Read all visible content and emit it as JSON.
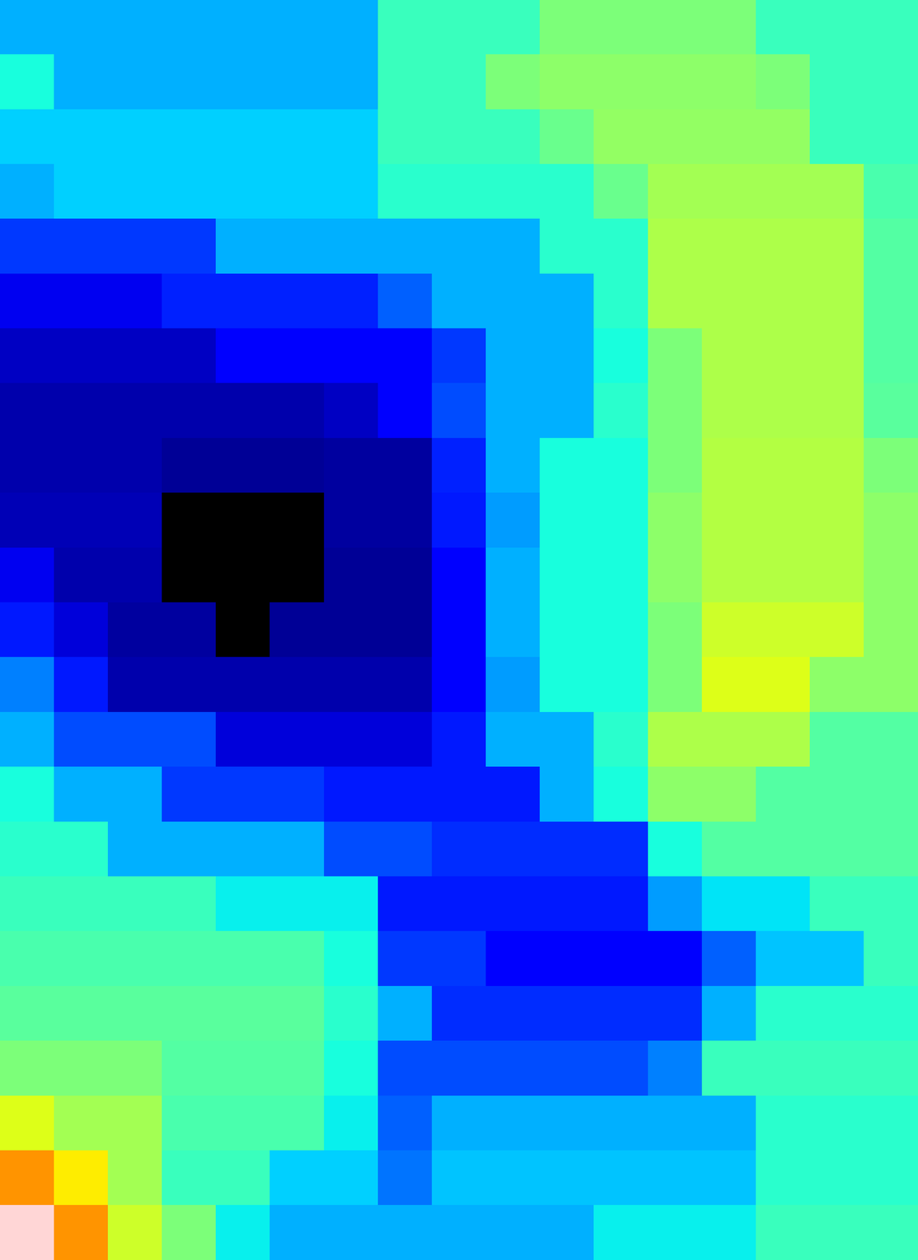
{
  "chart_data": {
    "type": "heatmap",
    "tick_labels": false,
    "vmin": 0,
    "vmax": 1,
    "cells": [
      [
        0.3,
        0.3,
        0.3,
        0.3,
        0.3,
        0.3,
        0.3,
        0.42,
        0.42,
        0.42,
        0.5,
        0.5,
        0.5,
        0.5,
        0.42,
        0.42,
        0.42
      ],
      [
        0.38,
        0.3,
        0.3,
        0.3,
        0.3,
        0.3,
        0.3,
        0.42,
        0.42,
        0.5,
        0.52,
        0.52,
        0.52,
        0.52,
        0.5,
        0.42,
        0.42
      ],
      [
        0.33,
        0.33,
        0.33,
        0.33,
        0.33,
        0.33,
        0.33,
        0.42,
        0.42,
        0.42,
        0.48,
        0.53,
        0.53,
        0.53,
        0.53,
        0.42,
        0.42
      ],
      [
        0.3,
        0.33,
        0.33,
        0.33,
        0.33,
        0.33,
        0.33,
        0.4,
        0.4,
        0.4,
        0.4,
        0.48,
        0.55,
        0.55,
        0.55,
        0.55,
        0.44
      ],
      [
        0.18,
        0.18,
        0.18,
        0.18,
        0.3,
        0.3,
        0.3,
        0.3,
        0.3,
        0.3,
        0.4,
        0.4,
        0.56,
        0.56,
        0.56,
        0.56,
        0.45
      ],
      [
        0.1,
        0.1,
        0.1,
        0.16,
        0.16,
        0.16,
        0.16,
        0.22,
        0.3,
        0.3,
        0.3,
        0.4,
        0.56,
        0.56,
        0.56,
        0.56,
        0.45
      ],
      [
        0.06,
        0.06,
        0.06,
        0.06,
        0.12,
        0.12,
        0.12,
        0.12,
        0.18,
        0.3,
        0.3,
        0.38,
        0.5,
        0.56,
        0.56,
        0.56,
        0.45
      ],
      [
        0.04,
        0.04,
        0.04,
        0.04,
        0.04,
        0.04,
        0.06,
        0.12,
        0.2,
        0.3,
        0.3,
        0.4,
        0.5,
        0.56,
        0.56,
        0.56,
        0.46
      ],
      [
        0.04,
        0.04,
        0.04,
        0.02,
        0.02,
        0.02,
        0.03,
        0.03,
        0.16,
        0.3,
        0.38,
        0.38,
        0.5,
        0.57,
        0.57,
        0.57,
        0.5
      ],
      [
        0.05,
        0.05,
        0.05,
        -0.05,
        -0.05,
        -0.05,
        0.03,
        0.03,
        0.15,
        0.28,
        0.38,
        0.38,
        0.52,
        0.57,
        0.57,
        0.57,
        0.52
      ],
      [
        0.1,
        0.04,
        0.04,
        -0.05,
        -0.05,
        -0.05,
        0.02,
        0.02,
        0.12,
        0.3,
        0.38,
        0.38,
        0.52,
        0.57,
        0.57,
        0.57,
        0.52
      ],
      [
        0.15,
        0.08,
        0.03,
        0.03,
        -0.05,
        0.02,
        0.02,
        0.02,
        0.12,
        0.3,
        0.38,
        0.38,
        0.5,
        0.6,
        0.6,
        0.6,
        0.52
      ],
      [
        0.25,
        0.15,
        0.04,
        0.04,
        0.04,
        0.04,
        0.04,
        0.04,
        0.12,
        0.28,
        0.38,
        0.38,
        0.5,
        0.62,
        0.62,
        0.52,
        0.52
      ],
      [
        0.3,
        0.2,
        0.2,
        0.2,
        0.08,
        0.08,
        0.08,
        0.08,
        0.15,
        0.3,
        0.3,
        0.4,
        0.56,
        0.56,
        0.56,
        0.45,
        0.45
      ],
      [
        0.38,
        0.3,
        0.3,
        0.18,
        0.18,
        0.18,
        0.15,
        0.15,
        0.15,
        0.15,
        0.3,
        0.38,
        0.52,
        0.52,
        0.45,
        0.45,
        0.45
      ],
      [
        0.4,
        0.4,
        0.3,
        0.3,
        0.3,
        0.3,
        0.2,
        0.2,
        0.17,
        0.17,
        0.17,
        0.17,
        0.38,
        0.45,
        0.45,
        0.45,
        0.45
      ],
      [
        0.42,
        0.42,
        0.42,
        0.42,
        0.36,
        0.36,
        0.36,
        0.15,
        0.15,
        0.15,
        0.15,
        0.15,
        0.28,
        0.35,
        0.35,
        0.42,
        0.42
      ],
      [
        0.44,
        0.44,
        0.44,
        0.44,
        0.44,
        0.44,
        0.38,
        0.18,
        0.18,
        0.12,
        0.12,
        0.12,
        0.12,
        0.22,
        0.32,
        0.32,
        0.42
      ],
      [
        0.46,
        0.46,
        0.46,
        0.46,
        0.46,
        0.46,
        0.4,
        0.3,
        0.17,
        0.17,
        0.17,
        0.17,
        0.17,
        0.3,
        0.4,
        0.4,
        0.4
      ],
      [
        0.5,
        0.5,
        0.5,
        0.45,
        0.45,
        0.45,
        0.38,
        0.2,
        0.2,
        0.2,
        0.2,
        0.2,
        0.25,
        0.42,
        0.42,
        0.42,
        0.42
      ],
      [
        0.62,
        0.55,
        0.55,
        0.44,
        0.44,
        0.44,
        0.36,
        0.22,
        0.3,
        0.3,
        0.3,
        0.3,
        0.3,
        0.3,
        0.4,
        0.4,
        0.4
      ],
      [
        0.75,
        0.66,
        0.55,
        0.42,
        0.42,
        0.33,
        0.33,
        0.24,
        0.32,
        0.32,
        0.32,
        0.32,
        0.32,
        0.32,
        0.4,
        0.4,
        0.4
      ],
      [
        1.05,
        0.75,
        0.6,
        0.5,
        0.36,
        0.3,
        0.3,
        0.3,
        0.3,
        0.3,
        0.3,
        0.36,
        0.36,
        0.36,
        0.42,
        0.42,
        0.42
      ]
    ]
  }
}
